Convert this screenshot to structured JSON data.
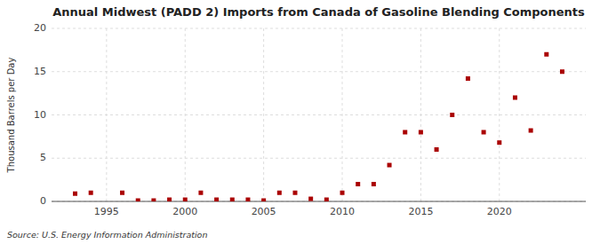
{
  "chart_data": {
    "type": "scatter",
    "title": "Annual Midwest (PADD 2) Imports from Canada of Gasoline Blending Components",
    "ylabel": "Thousand Barrels per Day",
    "source": "Source: U.S. Energy Information Administration",
    "x": [
      1993,
      1994,
      1996,
      1997,
      1998,
      1999,
      2000,
      2001,
      2002,
      2003,
      2004,
      2005,
      2006,
      2007,
      2008,
      2009,
      2010,
      2011,
      2012,
      2013,
      2014,
      2015,
      2016,
      2017,
      2018,
      2019,
      2020,
      2021,
      2022,
      2023,
      2024
    ],
    "values": [
      0.9,
      1.0,
      1.0,
      0.1,
      0.1,
      0.2,
      0.2,
      1.0,
      0.2,
      0.2,
      0.2,
      0.1,
      1.0,
      1.0,
      0.3,
      0.2,
      1.0,
      2.0,
      2.0,
      4.2,
      8.0,
      8.0,
      6.0,
      10.0,
      14.2,
      8.0,
      6.8,
      12.0,
      8.2,
      17.0,
      15.0
    ],
    "color": "#aa0000",
    "marker": "square",
    "xlim": [
      1991.5,
      2025.5
    ],
    "ylim": [
      0,
      20
    ],
    "xticks": [
      1995,
      2000,
      2005,
      2010,
      2015,
      2020
    ],
    "yticks": [
      0,
      5,
      10,
      15,
      20
    ],
    "grid": true
  }
}
